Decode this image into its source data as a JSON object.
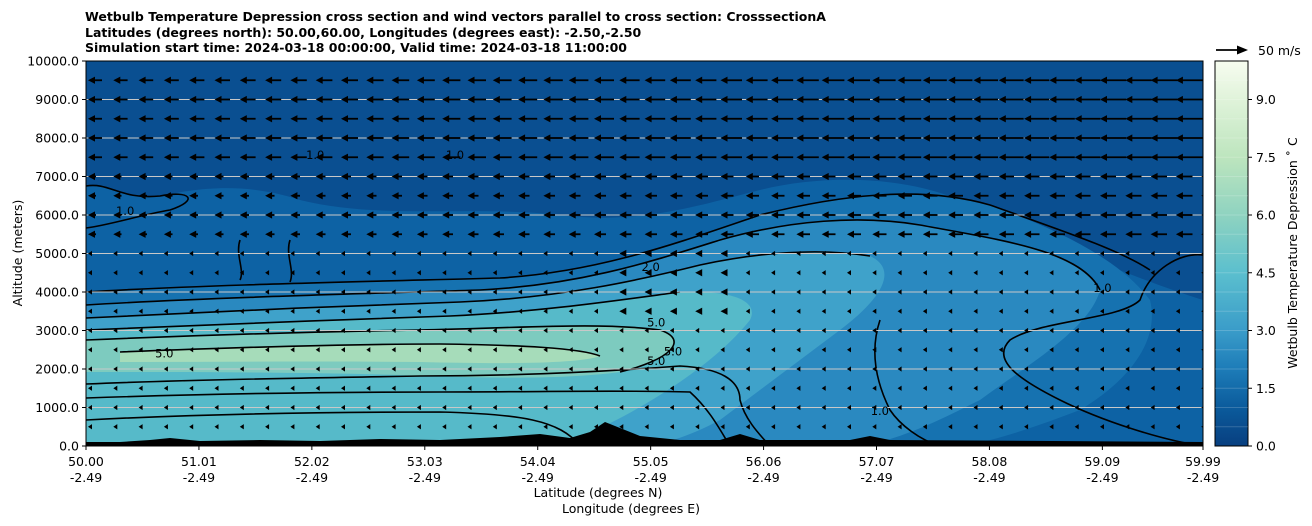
{
  "chart_data": {
    "type": "contourf",
    "title": [
      "Wetbulb Temperature Depression cross section and wind vectors parallel to cross section: CrosssectionA",
      "Latitudes (degrees north): 50.00,60.00, Longitudes (degrees east): -2.50,-2.50",
      "Simulation start time: 2024-03-18 00:00:00, Valid time: 2024-03-18 11:00:00"
    ],
    "xlabel": "Latitude (degrees N)",
    "xlabel2": "Longitude (degrees E)",
    "ylabel": "Altitude (meters)",
    "xlim": [
      50.0,
      59.99
    ],
    "ylim": [
      0,
      10000
    ],
    "x_ticks": [
      {
        "lat": "50.00",
        "lon": "-2.49",
        "v": 50.0
      },
      {
        "lat": "51.01",
        "lon": "-2.49",
        "v": 51.01
      },
      {
        "lat": "52.02",
        "lon": "-2.49",
        "v": 52.02
      },
      {
        "lat": "53.03",
        "lon": "-2.49",
        "v": 53.03
      },
      {
        "lat": "54.04",
        "lon": "-2.49",
        "v": 54.04
      },
      {
        "lat": "55.05",
        "lon": "-2.49",
        "v": 55.05
      },
      {
        "lat": "56.06",
        "lon": "-2.49",
        "v": 56.06
      },
      {
        "lat": "57.07",
        "lon": "-2.49",
        "v": 57.07
      },
      {
        "lat": "58.08",
        "lon": "-2.49",
        "v": 58.08
      },
      {
        "lat": "59.09",
        "lon": "-2.49",
        "v": 59.09
      },
      {
        "lat": "59.99",
        "lon": "-2.49",
        "v": 59.99
      }
    ],
    "y_ticks": [
      {
        "label": "0.0",
        "v": 0
      },
      {
        "label": "1000.0",
        "v": 1000
      },
      {
        "label": "2000.0",
        "v": 2000
      },
      {
        "label": "3000.0",
        "v": 3000
      },
      {
        "label": "4000.0",
        "v": 4000
      },
      {
        "label": "5000.0",
        "v": 5000
      },
      {
        "label": "6000.0",
        "v": 6000
      },
      {
        "label": "7000.0",
        "v": 7000
      },
      {
        "label": "8000.0",
        "v": 8000
      },
      {
        "label": "9000.0",
        "v": 9000
      },
      {
        "label": "10000.0",
        "v": 10000
      }
    ],
    "colorbar": {
      "label": "Wetbulb Temperature Depression $^\\circ$C",
      "label_text": "Wetbulb Temperature Depression ˚ C",
      "min": 0.0,
      "max": 10.0,
      "ticks": [
        {
          "label": "0.0",
          "v": 0.0
        },
        {
          "label": "1.5",
          "v": 1.5
        },
        {
          "label": "3.0",
          "v": 3.0
        },
        {
          "label": "4.5",
          "v": 4.5
        },
        {
          "label": "6.0",
          "v": 6.0
        },
        {
          "label": "7.5",
          "v": 7.5
        },
        {
          "label": "9.0",
          "v": 9.0
        }
      ],
      "levels": 20
    },
    "quiver_key": "50 m/s",
    "contour_labels": [
      {
        "text": "1.0",
        "lat": 52.05,
        "alt": 7450
      },
      {
        "text": "1.0",
        "lat": 53.3,
        "alt": 7450
      },
      {
        "text": "2.0",
        "lat": 55.05,
        "alt": 4550
      },
      {
        "text": "5.0",
        "lat": 55.1,
        "alt": 3100
      },
      {
        "text": "5.0",
        "lat": 50.7,
        "alt": 2300
      },
      {
        "text": "5.0",
        "lat": 55.25,
        "alt": 2350
      },
      {
        "text": "5.0",
        "lat": 55.1,
        "alt": 2100
      },
      {
        "text": "1.0",
        "lat": 59.09,
        "alt": 4000
      },
      {
        "text": "1.0",
        "lat": 50.35,
        "alt": 6000
      },
      {
        "text": "1.0",
        "lat": 57.1,
        "alt": 800
      }
    ]
  }
}
